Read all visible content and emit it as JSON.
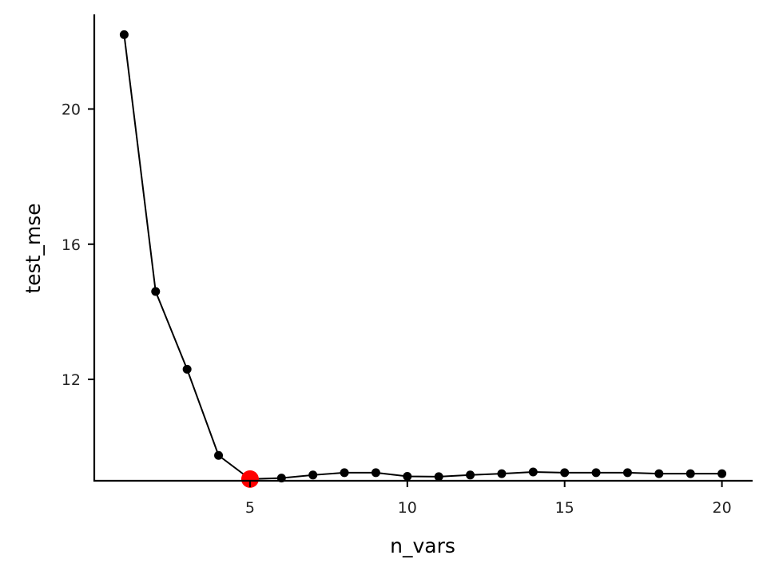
{
  "chart_data": {
    "type": "line",
    "title": "",
    "xlabel": "n_vars",
    "ylabel": "test_mse",
    "xlim": [
      0.05,
      20.95
    ],
    "ylim": [
      9.0,
      22.8
    ],
    "x_ticks": [
      5,
      10,
      15,
      20
    ],
    "x_tick_labels": [
      "5",
      "10",
      "15",
      "20"
    ],
    "y_ticks": [
      12,
      16,
      20
    ],
    "y_tick_labels": [
      "12",
      "16",
      "20"
    ],
    "grid": false,
    "legend": "none",
    "line_color": "#000000",
    "point_color": "#000000",
    "highlight_color": "#ff0000",
    "highlight_x": 5,
    "series": [
      {
        "x": [
          1,
          2,
          3,
          4,
          5,
          6,
          7,
          8,
          9,
          10,
          11,
          12,
          13,
          14,
          15,
          16,
          17,
          18,
          19,
          20
        ],
        "values": [
          22.2,
          14.6,
          12.3,
          9.75,
          9.05,
          9.08,
          9.17,
          9.24,
          9.24,
          9.13,
          9.12,
          9.17,
          9.21,
          9.26,
          9.24,
          9.24,
          9.24,
          9.21,
          9.21,
          9.21
        ]
      }
    ]
  }
}
